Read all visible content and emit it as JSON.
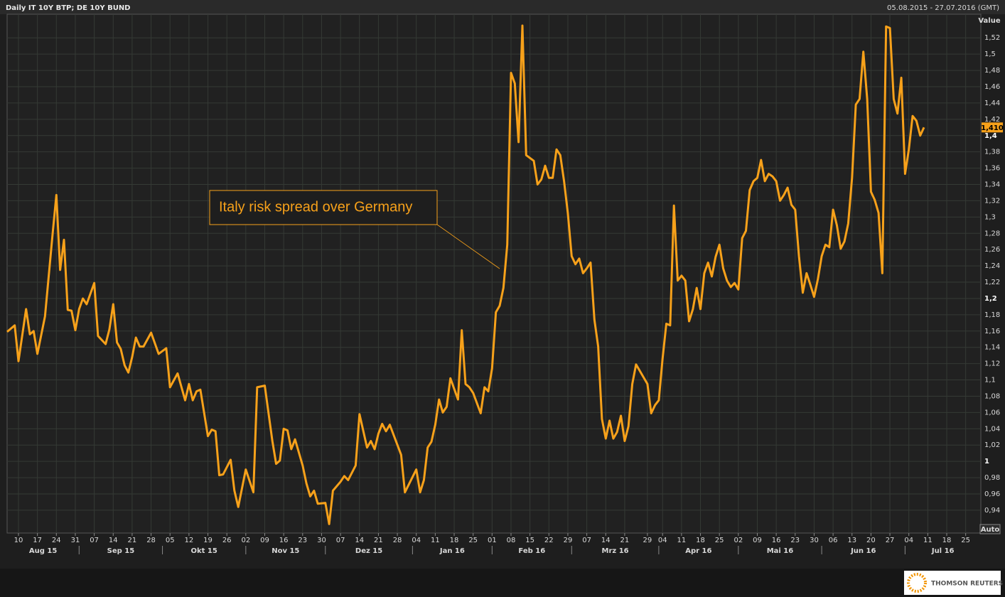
{
  "chart_data": {
    "type": "line",
    "title": "Daily IT 10Y BTP; DE 10Y BUND",
    "date_range": "05.08.2015 - 27.07.2016 (GMT)",
    "y_label": "Value",
    "scale_button": "Auto",
    "annotation": "Italy risk spread over Germany",
    "logo": "THOMSON REUTERS",
    "color": "#f7a11a",
    "grid": true,
    "xlim": [
      "2015-08-05",
      "2016-07-29"
    ],
    "ylim": [
      0.912,
      1.549
    ],
    "current_value": {
      "value": 1.41,
      "label": "1,410"
    },
    "yticks": [
      {
        "value": 0.94,
        "label": "0,94"
      },
      {
        "value": 0.96,
        "label": "0,96"
      },
      {
        "value": 0.98,
        "label": "0,98"
      },
      1,
      {
        "value": 1.02,
        "label": "1,02"
      },
      {
        "value": 1.04,
        "label": "1,04"
      },
      {
        "value": 1.06,
        "label": "1,06"
      },
      {
        "value": 1.08,
        "label": "1,08"
      },
      {
        "value": 1.1,
        "label": "1,1"
      },
      {
        "value": 1.12,
        "label": "1,12"
      },
      {
        "value": 1.14,
        "label": "1,14"
      },
      {
        "value": 1.16,
        "label": "1,16"
      },
      {
        "value": 1.18,
        "label": "1,18"
      },
      {
        "value": 1.2,
        "label": "1,2"
      },
      {
        "value": 1.22,
        "label": "1,22"
      },
      {
        "value": 1.24,
        "label": "1,24"
      },
      {
        "value": 1.26,
        "label": "1,26"
      },
      {
        "value": 1.28,
        "label": "1,28"
      },
      {
        "value": 1.3,
        "label": "1,3"
      },
      {
        "value": 1.32,
        "label": "1,32"
      },
      {
        "value": 1.34,
        "label": "1,34"
      },
      {
        "value": 1.36,
        "label": "1,36"
      },
      {
        "value": 1.38,
        "label": "1,38"
      },
      {
        "value": 1.4,
        "label": "1,4"
      },
      {
        "value": 1.42,
        "label": "1,42"
      },
      {
        "value": 1.44,
        "label": "1,44"
      },
      {
        "value": 1.46,
        "label": "1,46"
      },
      {
        "value": 1.48,
        "label": "1,48"
      },
      {
        "value": 1.5,
        "label": "1,5"
      },
      {
        "value": 1.52,
        "label": "1,52"
      }
    ],
    "xticks": [
      {
        "value": "2015-08-10",
        "label": "10"
      },
      {
        "value": "2015-08-17",
        "label": "17"
      },
      {
        "value": "2015-08-24",
        "label": "24"
      },
      {
        "value": "2015-08-31",
        "label": "31"
      },
      {
        "value": "2015-09-07",
        "label": "07"
      },
      {
        "value": "2015-09-14",
        "label": "14"
      },
      {
        "value": "2015-09-21",
        "label": "21"
      },
      {
        "value": "2015-09-28",
        "label": "28"
      },
      {
        "value": "2015-10-05",
        "label": "05"
      },
      {
        "value": "2015-10-12",
        "label": "12"
      },
      {
        "value": "2015-10-19",
        "label": "19"
      },
      {
        "value": "2015-10-26",
        "label": "26"
      },
      {
        "value": "2015-11-02",
        "label": "02"
      },
      {
        "value": "2015-11-09",
        "label": "09"
      },
      {
        "value": "2015-11-16",
        "label": "16"
      },
      {
        "value": "2015-11-23",
        "label": "23"
      },
      {
        "value": "2015-11-30",
        "label": "30"
      },
      {
        "value": "2015-12-07",
        "label": "07"
      },
      {
        "value": "2015-12-14",
        "label": "14"
      },
      {
        "value": "2015-12-21",
        "label": "21"
      },
      {
        "value": "2015-12-28",
        "label": "28"
      },
      {
        "value": "2016-01-04",
        "label": "04"
      },
      {
        "value": "2016-01-11",
        "label": "11"
      },
      {
        "value": "2016-01-18",
        "label": "18"
      },
      {
        "value": "2016-01-25",
        "label": "25"
      },
      {
        "value": "2016-02-01",
        "label": "01"
      },
      {
        "value": "2016-02-08",
        "label": "08"
      },
      {
        "value": "2016-02-15",
        "label": "15"
      },
      {
        "value": "2016-02-22",
        "label": "22"
      },
      {
        "value": "2016-02-29",
        "label": "29"
      },
      {
        "value": "2016-03-07",
        "label": "07"
      },
      {
        "value": "2016-03-14",
        "label": "14"
      },
      {
        "value": "2016-03-21",
        "label": "21"
      },
      {
        "value": "2016-03-29",
        "label": "29"
      },
      {
        "value": "2016-04-04",
        "label": "04"
      },
      {
        "value": "2016-04-11",
        "label": "11"
      },
      {
        "value": "2016-04-18",
        "label": "18"
      },
      {
        "value": "2016-04-25",
        "label": "25"
      },
      {
        "value": "2016-05-02",
        "label": "02"
      },
      {
        "value": "2016-05-09",
        "label": "09"
      },
      {
        "value": "2016-05-16",
        "label": "16"
      },
      {
        "value": "2016-05-23",
        "label": "23"
      },
      {
        "value": "2016-05-30",
        "label": "30"
      },
      {
        "value": "2016-06-06",
        "label": "06"
      },
      {
        "value": "2016-06-13",
        "label": "13"
      },
      {
        "value": "2016-06-20",
        "label": "20"
      },
      {
        "value": "2016-06-27",
        "label": "27"
      },
      {
        "value": "2016-07-04",
        "label": "04"
      },
      {
        "value": "2016-07-11",
        "label": "11"
      },
      {
        "value": "2016-07-18",
        "label": "18"
      },
      {
        "value": "2016-07-25",
        "label": "25"
      }
    ],
    "month_labels": [
      {
        "value": "2015-08",
        "label": "Aug 15"
      },
      {
        "value": "2015-09",
        "label": "Sep 15"
      },
      {
        "value": "2015-10",
        "label": "Okt 15"
      },
      {
        "value": "2015-11",
        "label": "Nov 15"
      },
      {
        "value": "2015-12",
        "label": "Dez 15"
      },
      {
        "value": "2016-01",
        "label": "Jan 16"
      },
      {
        "value": "2016-02",
        "label": "Feb 16"
      },
      {
        "value": "2016-03",
        "label": "Mrz 16"
      },
      {
        "value": "2016-04",
        "label": "Apr 16"
      },
      {
        "value": "2016-05",
        "label": "Mai 16"
      },
      {
        "value": "2016-06",
        "label": "Jun 16"
      },
      {
        "value": "2016-07",
        "label": "Jul 16"
      }
    ],
    "x": [
      "2015-08-05",
      "2015-08-07",
      "2015-08-10",
      "2015-08-12",
      "2015-08-13",
      "2015-08-14",
      "2015-08-17",
      "2015-08-19",
      "2015-08-21",
      "2015-08-24",
      "2015-08-25",
      "2015-08-26",
      "2015-08-27",
      "2015-08-28",
      "2015-08-31",
      "2015-09-01",
      "2015-09-02",
      "2015-09-03",
      "2015-09-07",
      "2015-09-08",
      "2015-09-10",
      "2015-09-11",
      "2015-09-14",
      "2015-09-15",
      "2015-09-16",
      "2015-09-17",
      "2015-09-18",
      "2015-09-21",
      "2015-09-22",
      "2015-09-23",
      "2015-09-24",
      "2015-09-28",
      "2015-09-30",
      "2015-10-02",
      "2015-10-05",
      "2015-10-07",
      "2015-10-09",
      "2015-10-12",
      "2015-10-13",
      "2015-10-14",
      "2015-10-15",
      "2015-10-19",
      "2015-10-20",
      "2015-10-21",
      "2015-10-22",
      "2015-10-23",
      "2015-10-27",
      "2015-10-28",
      "2015-10-29",
      "2015-11-02",
      "2015-11-04",
      "2015-11-05",
      "2015-11-09",
      "2015-11-11",
      "2015-11-12",
      "2015-11-13",
      "2015-11-16",
      "2015-11-17",
      "2015-11-18",
      "2015-11-19",
      "2015-11-23",
      "2015-11-24",
      "2015-11-25",
      "2015-11-26",
      "2015-11-27",
      "2015-12-01",
      "2015-12-02",
      "2015-12-03",
      "2015-12-07",
      "2015-12-08",
      "2015-12-09",
      "2015-12-11",
      "2015-12-14",
      "2015-12-16",
      "2015-12-17",
      "2015-12-18",
      "2015-12-21",
      "2015-12-22",
      "2015-12-23",
      "2015-12-24",
      "2015-12-29",
      "2015-12-30",
      "2016-01-04",
      "2016-01-05",
      "2016-01-06",
      "2016-01-07",
      "2016-01-08",
      "2016-01-11",
      "2016-01-12",
      "2016-01-13",
      "2016-01-14",
      "2016-01-15",
      "2016-01-19",
      "2016-01-20",
      "2016-01-21",
      "2016-01-22",
      "2016-01-25",
      "2016-01-27",
      "2016-01-28",
      "2016-01-29",
      "2016-02-01",
      "2016-02-02",
      "2016-02-03",
      "2016-02-04",
      "2016-02-05",
      "2016-02-08",
      "2016-02-09",
      "2016-02-10",
      "2016-02-11",
      "2016-02-12",
      "2016-02-16",
      "2016-02-17",
      "2016-02-18",
      "2016-02-19",
      "2016-02-22",
      "2016-02-23",
      "2016-02-24",
      "2016-02-25",
      "2016-02-26",
      "2016-02-29",
      "2016-03-01",
      "2016-03-02",
      "2016-03-03",
      "2016-03-04",
      "2016-03-07",
      "2016-03-08",
      "2016-03-09",
      "2016-03-10",
      "2016-03-11",
      "2016-03-14",
      "2016-03-15",
      "2016-03-16",
      "2016-03-17",
      "2016-03-18",
      "2016-03-21",
      "2016-03-22",
      "2016-03-23",
      "2016-03-24",
      "2016-03-29",
      "2016-03-30",
      "2016-03-31",
      "2016-04-01",
      "2016-04-04",
      "2016-04-05",
      "2016-04-06",
      "2016-04-07",
      "2016-04-08",
      "2016-04-11",
      "2016-04-12",
      "2016-04-13",
      "2016-04-14",
      "2016-04-15",
      "2016-04-18",
      "2016-04-19",
      "2016-04-20",
      "2016-04-21",
      "2016-04-22",
      "2016-04-25",
      "2016-04-26",
      "2016-04-27",
      "2016-04-28",
      "2016-04-29",
      "2016-05-02",
      "2016-05-03",
      "2016-05-04",
      "2016-05-05",
      "2016-05-06",
      "2016-05-09",
      "2016-05-10",
      "2016-05-11",
      "2016-05-12",
      "2016-05-13",
      "2016-05-16",
      "2016-05-17",
      "2016-05-18",
      "2016-05-19",
      "2016-05-20",
      "2016-05-23",
      "2016-05-24",
      "2016-05-25",
      "2016-05-26",
      "2016-05-27",
      "2016-05-30",
      "2016-05-31",
      "2016-06-01",
      "2016-06-02",
      "2016-06-03",
      "2016-06-06",
      "2016-06-07",
      "2016-06-08",
      "2016-06-09",
      "2016-06-10",
      "2016-06-13",
      "2016-06-14",
      "2016-06-15",
      "2016-06-16",
      "2016-06-17",
      "2016-06-20",
      "2016-06-21",
      "2016-06-22",
      "2016-06-23",
      "2016-06-24",
      "2016-06-27",
      "2016-06-28",
      "2016-06-29",
      "2016-06-30",
      "2016-07-01",
      "2016-07-04",
      "2016-07-05",
      "2016-07-06",
      "2016-07-07",
      "2016-07-08"
    ],
    "values": [
      1.159,
      1.167,
      1.123,
      1.187,
      1.156,
      1.16,
      1.132,
      1.178,
      1.279,
      1.327,
      1.235,
      1.272,
      1.186,
      1.185,
      1.161,
      1.187,
      1.2,
      1.193,
      1.219,
      1.154,
      1.144,
      1.162,
      1.193,
      1.146,
      1.138,
      1.118,
      1.109,
      1.128,
      1.152,
      1.141,
      1.141,
      1.158,
      1.132,
      1.139,
      1.091,
      1.108,
      1.075,
      1.095,
      1.075,
      1.086,
      1.088,
      1.031,
      1.039,
      1.037,
      0.983,
      0.984,
      1.002,
      0.964,
      0.944,
      0.99,
      0.962,
      1.091,
      1.093,
      1.025,
      0.997,
      1.001,
      1.04,
      1.038,
      1.015,
      1.027,
      0.995,
      0.973,
      0.957,
      0.964,
      0.948,
      0.949,
      0.923,
      0.964,
      0.975,
      0.982,
      0.977,
      0.995,
      1.058,
      1.017,
      1.025,
      1.015,
      1.034,
      1.046,
      1.037,
      1.045,
      1.008,
      0.962,
      0.99,
      0.962,
      0.977,
      1.017,
      1.024,
      1.045,
      1.076,
      1.06,
      1.067,
      1.102,
      1.076,
      1.161,
      1.095,
      1.091,
      1.084,
      1.059,
      1.091,
      1.086,
      1.114,
      1.183,
      1.191,
      1.213,
      1.266,
      1.477,
      1.464,
      1.392,
      1.535,
      1.376,
      1.369,
      1.34,
      1.346,
      1.363,
      1.348,
      1.348,
      1.383,
      1.376,
      1.344,
      1.305,
      1.252,
      1.242,
      1.249,
      1.231,
      1.237,
      1.244,
      1.174,
      1.141,
      1.052,
      1.028,
      1.05,
      1.028,
      1.036,
      1.056,
      1.025,
      1.043,
      1.095,
      1.119,
      1.095,
      1.059,
      1.069,
      1.075,
      1.126,
      1.169,
      1.167,
      1.314,
      1.222,
      1.228,
      1.222,
      1.172,
      1.187,
      1.213,
      1.187,
      1.231,
      1.244,
      1.227,
      1.251,
      1.266,
      1.237,
      1.222,
      1.214,
      1.219,
      1.211,
      1.274,
      1.283,
      1.333,
      1.344,
      1.348,
      1.37,
      1.344,
      1.353,
      1.35,
      1.344,
      1.32,
      1.327,
      1.336,
      1.315,
      1.309,
      1.252,
      1.207,
      1.231,
      1.217,
      1.202,
      1.224,
      1.252,
      1.266,
      1.263,
      1.309,
      1.29,
      1.261,
      1.27,
      1.292,
      1.348,
      1.438,
      1.445,
      1.503,
      1.445,
      1.331,
      1.321,
      1.305,
      1.231,
      1.534,
      1.532,
      1.445,
      1.427,
      1.471,
      1.353,
      1.383,
      1.424,
      1.418,
      1.4,
      1.41
    ]
  }
}
